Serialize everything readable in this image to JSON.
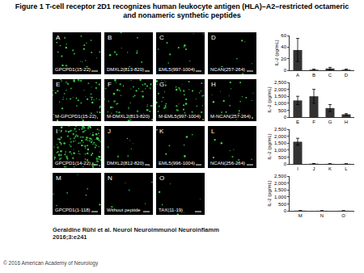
{
  "title": "Figure 1 T-cell receptor 2D1 recognizes human leukocyte antigen (HLA)–A2–restricted octameric and nonameric synthetic peptides",
  "panels": [
    {
      "letter": "A",
      "label": "GPCPD1(15-22)"
    },
    {
      "letter": "B",
      "label": "DMXL2(813-820)"
    },
    {
      "letter": "C",
      "label": "EML5(997-1004)"
    },
    {
      "letter": "D",
      "label": "NCAN(257-264)"
    },
    {
      "letter": "E",
      "label": "M-GPCPD1(15-22)"
    },
    {
      "letter": "F",
      "label": "M-DMXL2(813-820)"
    },
    {
      "letter": "G",
      "label": "M-EML5(997-1004)"
    },
    {
      "letter": "H",
      "label": "M-NCAN(257-264)"
    },
    {
      "letter": "I",
      "label": "GPCPD1(14-22)"
    },
    {
      "letter": "J",
      "label": "DMXL2(812-820)"
    },
    {
      "letter": "K",
      "label": "EML5(996-1004)"
    },
    {
      "letter": "L",
      "label": "NCAN(256-264)"
    },
    {
      "letter": "M",
      "label": "GPCPD1(1-118)"
    },
    {
      "letter": "N",
      "label": "Without peptide"
    },
    {
      "letter": "O",
      "label": "TAX(11-19)"
    }
  ],
  "chart_data": [
    {
      "type": "bar",
      "categories": [
        "A",
        "B",
        "C",
        "D"
      ],
      "values": [
        35,
        1,
        3,
        1
      ],
      "errors": [
        20,
        1,
        2,
        1
      ],
      "ylabel": "IL-2 (pg/mL)",
      "ylim": [
        0,
        60
      ],
      "yticks": [
        0,
        20,
        40,
        60
      ],
      "color": "#333333"
    },
    {
      "type": "bar",
      "categories": [
        "E",
        "F",
        "G",
        "H"
      ],
      "values": [
        1200,
        1500,
        650,
        200
      ],
      "errors": [
        300,
        500,
        250,
        50
      ],
      "ylabel": "IL-2 (pg/mL)",
      "ylim": [
        0,
        2500
      ],
      "yticks": [
        0,
        500,
        {
          "value": 1000,
          "label": "1,000"
        },
        {
          "value": 1500,
          "label": "1,500"
        },
        {
          "value": 2000,
          "label": "2,000"
        },
        {
          "value": 2500,
          "label": "2,500"
        }
      ],
      "color": "#333333"
    },
    {
      "type": "bar",
      "categories": [
        "I",
        "J",
        "K",
        "L"
      ],
      "values": [
        1600,
        20,
        10,
        10
      ],
      "errors": [
        250,
        10,
        5,
        5
      ],
      "ylabel": "IL-2 (pg/mL)",
      "ylim": [
        0,
        2500
      ],
      "yticks": [
        0,
        500,
        {
          "value": 1000,
          "label": "1,000"
        },
        {
          "value": 1500,
          "label": "1,500"
        },
        {
          "value": 2000,
          "label": "2,000"
        },
        {
          "value": 2500,
          "label": "2,500"
        }
      ],
      "color": "#333333"
    },
    {
      "type": "bar",
      "categories": [
        "M",
        "N",
        "O"
      ],
      "values": [
        10,
        5,
        5
      ],
      "errors": [
        5,
        3,
        3
      ],
      "ylabel": "IL-2 (pg/mL)",
      "ylim": [
        0,
        2500
      ],
      "yticks": [
        0,
        500,
        {
          "value": 1000,
          "label": "1,000"
        },
        {
          "value": 1500,
          "label": "1,500"
        },
        {
          "value": 2000,
          "label": "2,000"
        },
        {
          "value": 2500,
          "label": "2,500"
        }
      ],
      "color": "#333333"
    }
  ],
  "citation": "Geraldine Rühl et al. Neurol Neuroimmunol Neuroinflamm 2016;3:e241",
  "copyright": "© 2016 American Academy of Neurology"
}
